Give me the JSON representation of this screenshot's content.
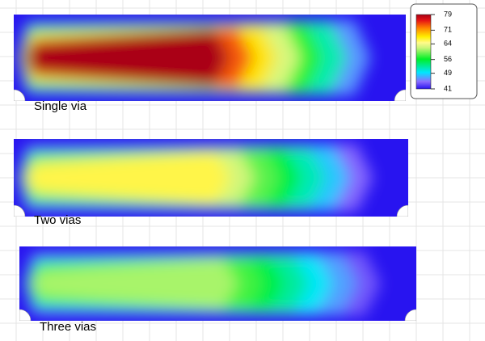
{
  "panels": [
    {
      "label": "Single via",
      "min": 41,
      "peak": 79
    },
    {
      "label": "Two vias",
      "min": 41,
      "peak": 66
    },
    {
      "label": "Three vias",
      "min": 41,
      "peak": 61
    }
  ],
  "colorbar": {
    "range": [
      41,
      79
    ],
    "ticks": [
      41,
      49,
      56,
      64,
      71,
      79
    ]
  }
}
